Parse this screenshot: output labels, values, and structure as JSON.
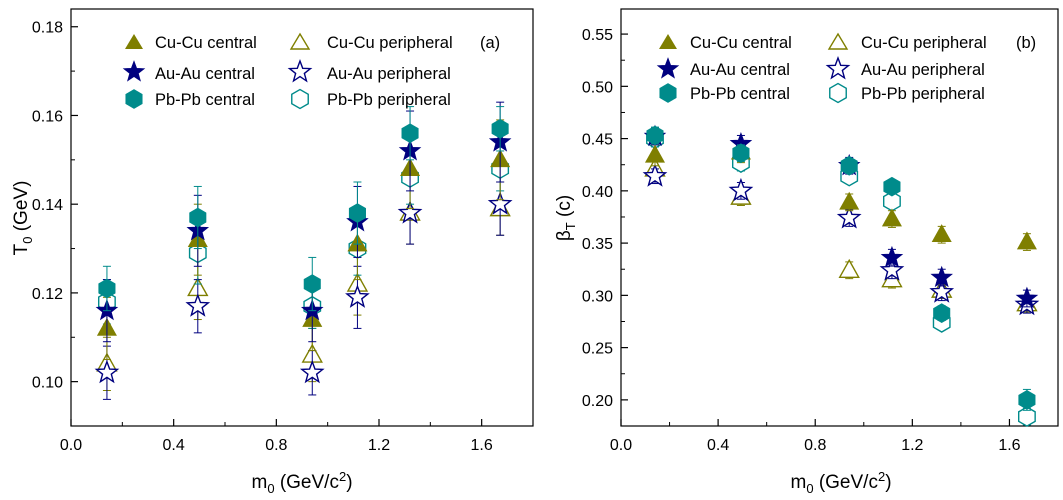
{
  "colors": {
    "cucu": "#7f7f00",
    "auau": "#00007f",
    "pbpb": "#008b8b"
  },
  "legend_labels": {
    "cucu_central": "Cu-Cu central",
    "cucu_peripheral": "Cu-Cu peripheral",
    "auau_central": "Au-Au central",
    "auau_peripheral": "Au-Au peripheral",
    "pbpb_central": "Pb-Pb central",
    "pbpb_peripheral": "Pb-Pb peripheral"
  },
  "chart_data": [
    {
      "type": "scatter",
      "panel_label": "(a)",
      "xlabel": "m0 (GeV/c2)",
      "ylabel": "T0 (GeV)",
      "xlim": [
        0.0,
        1.8
      ],
      "ylim": [
        0.09,
        0.184
      ],
      "xticks": [
        "0.0",
        "0.4",
        "0.8",
        "1.2",
        "1.6"
      ],
      "yticks": [
        "0.10",
        "0.12",
        "0.14",
        "0.16",
        "0.18"
      ],
      "legend_position": "top",
      "series": [
        {
          "name": "Cu-Cu central",
          "system": "cucu",
          "marker": "triangle",
          "filled": true,
          "x": [
            0.14,
            0.494,
            0.94,
            1.116,
            1.321,
            1.672
          ],
          "y": [
            0.112,
            0.132,
            0.114,
            0.131,
            0.148,
            0.15
          ],
          "err": [
            0.007,
            0.008,
            0.007,
            0.008,
            0.009,
            0.009
          ]
        },
        {
          "name": "Cu-Cu peripheral",
          "system": "cucu",
          "marker": "triangle",
          "filled": false,
          "x": [
            0.14,
            0.494,
            0.94,
            1.116,
            1.321,
            1.672
          ],
          "y": [
            0.104,
            0.121,
            0.106,
            0.122,
            0.138,
            0.139
          ],
          "err": [
            0.006,
            0.007,
            0.006,
            0.007,
            0.007,
            0.006
          ]
        },
        {
          "name": "Au-Au central",
          "system": "auau",
          "marker": "star",
          "filled": true,
          "x": [
            0.14,
            0.494,
            0.94,
            1.116,
            1.321,
            1.672
          ],
          "y": [
            0.116,
            0.134,
            0.116,
            0.136,
            0.152,
            0.154
          ],
          "err": [
            0.007,
            0.008,
            0.007,
            0.008,
            0.009,
            0.009
          ]
        },
        {
          "name": "Au-Au peripheral",
          "system": "auau",
          "marker": "star",
          "filled": false,
          "x": [
            0.14,
            0.494,
            0.94,
            1.116,
            1.321,
            1.672
          ],
          "y": [
            0.102,
            0.117,
            0.102,
            0.119,
            0.138,
            0.14
          ],
          "err": [
            0.006,
            0.006,
            0.005,
            0.007,
            0.007,
            0.007
          ]
        },
        {
          "name": "Pb-Pb central",
          "system": "pbpb",
          "marker": "hexagon",
          "filled": true,
          "x": [
            0.14,
            0.494,
            0.94,
            1.116,
            1.321,
            1.672
          ],
          "y": [
            0.121,
            0.137,
            0.122,
            0.138,
            0.156,
            0.157
          ],
          "err": [
            0.005,
            0.007,
            0.006,
            0.007,
            0.006,
            0.005
          ]
        },
        {
          "name": "Pb-Pb peripheral",
          "system": "pbpb",
          "marker": "hexagon",
          "filled": false,
          "x": [
            0.14,
            0.494,
            0.94,
            1.116,
            1.321,
            1.672
          ],
          "y": [
            0.118,
            0.129,
            0.117,
            0.13,
            0.146,
            0.148
          ],
          "err": [
            0.005,
            0.007,
            0.005,
            0.006,
            0.006,
            0.005
          ]
        }
      ]
    },
    {
      "type": "scatter",
      "panel_label": "(b)",
      "xlabel": "m0 (GeV/c2)",
      "ylabel": "βT (c)",
      "xlim": [
        0.0,
        1.8
      ],
      "ylim": [
        0.175,
        0.574
      ],
      "xticks": [
        "0.0",
        "0.4",
        "0.8",
        "1.2",
        "1.6"
      ],
      "yticks": [
        "0.20",
        "0.25",
        "0.30",
        "0.35",
        "0.40",
        "0.45",
        "0.50",
        "0.55"
      ],
      "legend_position": "top",
      "series": [
        {
          "name": "Cu-Cu central",
          "system": "cucu",
          "marker": "triangle",
          "filled": true,
          "x": [
            0.14,
            0.494,
            0.94,
            1.116,
            1.321,
            1.672
          ],
          "y": [
            0.434,
            0.437,
            0.389,
            0.373,
            0.358,
            0.351
          ],
          "err": [
            0.01,
            0.01,
            0.008,
            0.008,
            0.008,
            0.008
          ]
        },
        {
          "name": "Cu-Cu peripheral",
          "system": "cucu",
          "marker": "triangle",
          "filled": false,
          "x": [
            0.14,
            0.494,
            0.94,
            1.116,
            1.321,
            1.672
          ],
          "y": [
            0.421,
            0.394,
            0.324,
            0.315,
            0.305,
            0.292
          ],
          "err": [
            0.008,
            0.008,
            0.008,
            0.008,
            0.008,
            0.008
          ]
        },
        {
          "name": "Au-Au central",
          "system": "auau",
          "marker": "star",
          "filled": true,
          "x": [
            0.14,
            0.494,
            0.94,
            1.116,
            1.321,
            1.672
          ],
          "y": [
            0.452,
            0.445,
            0.424,
            0.336,
            0.317,
            0.297
          ],
          "err": [
            0.008,
            0.008,
            0.008,
            0.008,
            0.008,
            0.008
          ]
        },
        {
          "name": "Au-Au peripheral",
          "system": "auau",
          "marker": "star",
          "filled": false,
          "x": [
            0.14,
            0.494,
            0.94,
            1.116,
            1.321,
            1.672
          ],
          "y": [
            0.414,
            0.4,
            0.374,
            0.324,
            0.303,
            0.291
          ],
          "err": [
            0.007,
            0.008,
            0.008,
            0.008,
            0.008,
            0.008
          ]
        },
        {
          "name": "Pb-Pb central",
          "system": "pbpb",
          "marker": "hexagon",
          "filled": true,
          "x": [
            0.14,
            0.494,
            0.94,
            1.116,
            1.321,
            1.672
          ],
          "y": [
            0.453,
            0.436,
            0.424,
            0.404,
            0.283,
            0.2
          ],
          "err": [
            0.008,
            0.008,
            0.007,
            0.005,
            0.007,
            0.01
          ]
        },
        {
          "name": "Pb-Pb peripheral",
          "system": "pbpb",
          "marker": "hexagon",
          "filled": false,
          "x": [
            0.14,
            0.494,
            0.94,
            1.116,
            1.321,
            1.672
          ],
          "y": [
            0.45,
            0.427,
            0.414,
            0.39,
            0.274,
            0.184
          ],
          "err": [
            0.008,
            0.008,
            0.007,
            0.007,
            0.007,
            0.008
          ]
        }
      ]
    }
  ]
}
